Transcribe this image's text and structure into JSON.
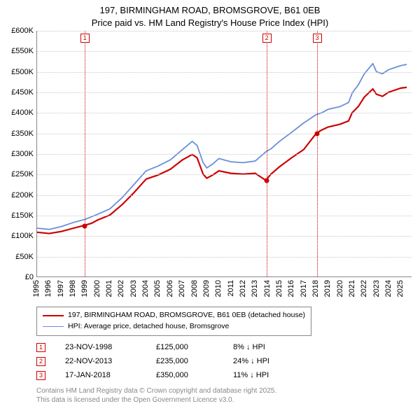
{
  "title_line1": "197, BIRMINGHAM ROAD, BROMSGROVE, B61 0EB",
  "title_line2": "Price paid vs. HM Land Registry's House Price Index (HPI)",
  "chart": {
    "type": "line",
    "background_color": "#ffffff",
    "grid_color": "#c8c8c8",
    "axis_color": "#888888",
    "y": {
      "min": 0,
      "max": 600000,
      "tick_step": 50000,
      "ticks": [
        "£0",
        "£50K",
        "£100K",
        "£150K",
        "£200K",
        "£250K",
        "£300K",
        "£350K",
        "£400K",
        "£450K",
        "£500K",
        "£550K",
        "£600K"
      ]
    },
    "x": {
      "min": 1995,
      "max": 2025.9,
      "ticks": [
        "1995",
        "1996",
        "1997",
        "1998",
        "1999",
        "2000",
        "2001",
        "2002",
        "2003",
        "2004",
        "2005",
        "2006",
        "2007",
        "2008",
        "2009",
        "2010",
        "2011",
        "2012",
        "2013",
        "2014",
        "2015",
        "2016",
        "2017",
        "2018",
        "2019",
        "2020",
        "2021",
        "2022",
        "2023",
        "2024",
        "2025"
      ]
    },
    "series": [
      {
        "key": "property",
        "label": "197, BIRMINGHAM ROAD, BROMSGROVE, B61 0EB (detached house)",
        "color": "#cc0000",
        "line_width": 2.2,
        "points": [
          [
            1995,
            108000
          ],
          [
            1996,
            105000
          ],
          [
            1997,
            110000
          ],
          [
            1998,
            118000
          ],
          [
            1998.9,
            125000
          ],
          [
            1999.5,
            130000
          ],
          [
            2000,
            138000
          ],
          [
            2001,
            150000
          ],
          [
            2002,
            175000
          ],
          [
            2003,
            205000
          ],
          [
            2004,
            238000
          ],
          [
            2005,
            248000
          ],
          [
            2006,
            262000
          ],
          [
            2007,
            285000
          ],
          [
            2007.8,
            298000
          ],
          [
            2008.2,
            290000
          ],
          [
            2008.7,
            250000
          ],
          [
            2009,
            240000
          ],
          [
            2009.5,
            248000
          ],
          [
            2010,
            258000
          ],
          [
            2011,
            252000
          ],
          [
            2012,
            250000
          ],
          [
            2013,
            252000
          ],
          [
            2013.86,
            235000
          ],
          [
            2014.3,
            250000
          ],
          [
            2015,
            268000
          ],
          [
            2016,
            290000
          ],
          [
            2017,
            310000
          ],
          [
            2018.04,
            350000
          ],
          [
            2018.5,
            358000
          ],
          [
            2019,
            365000
          ],
          [
            2020,
            372000
          ],
          [
            2020.7,
            380000
          ],
          [
            2021,
            400000
          ],
          [
            2021.5,
            415000
          ],
          [
            2022,
            438000
          ],
          [
            2022.7,
            458000
          ],
          [
            2023,
            445000
          ],
          [
            2023.5,
            440000
          ],
          [
            2024,
            450000
          ],
          [
            2024.5,
            455000
          ],
          [
            2025,
            460000
          ],
          [
            2025.5,
            462000
          ]
        ]
      },
      {
        "key": "hpi",
        "label": "HPI: Average price, detached house, Bromsgrove",
        "color": "#6a8fd8",
        "line_width": 1.8,
        "points": [
          [
            1995,
            118000
          ],
          [
            1996,
            115000
          ],
          [
            1997,
            122000
          ],
          [
            1998,
            132000
          ],
          [
            1999,
            140000
          ],
          [
            2000,
            152000
          ],
          [
            2001,
            165000
          ],
          [
            2002,
            192000
          ],
          [
            2003,
            225000
          ],
          [
            2004,
            258000
          ],
          [
            2005,
            270000
          ],
          [
            2006,
            285000
          ],
          [
            2007,
            310000
          ],
          [
            2007.8,
            330000
          ],
          [
            2008.2,
            320000
          ],
          [
            2008.7,
            278000
          ],
          [
            2009,
            265000
          ],
          [
            2009.5,
            275000
          ],
          [
            2010,
            288000
          ],
          [
            2011,
            280000
          ],
          [
            2012,
            278000
          ],
          [
            2013,
            282000
          ],
          [
            2013.9,
            305000
          ],
          [
            2014.3,
            312000
          ],
          [
            2015,
            330000
          ],
          [
            2016,
            352000
          ],
          [
            2017,
            375000
          ],
          [
            2018,
            395000
          ],
          [
            2018.5,
            400000
          ],
          [
            2019,
            408000
          ],
          [
            2020,
            415000
          ],
          [
            2020.7,
            425000
          ],
          [
            2021,
            448000
          ],
          [
            2021.5,
            468000
          ],
          [
            2022,
            495000
          ],
          [
            2022.7,
            520000
          ],
          [
            2023,
            500000
          ],
          [
            2023.5,
            495000
          ],
          [
            2024,
            505000
          ],
          [
            2024.5,
            510000
          ],
          [
            2025,
            515000
          ],
          [
            2025.5,
            518000
          ]
        ]
      }
    ],
    "markers": [
      {
        "n": "1",
        "year": 1998.9,
        "color": "#cc0000"
      },
      {
        "n": "2",
        "year": 2013.89,
        "color": "#cc0000"
      },
      {
        "n": "3",
        "year": 2018.04,
        "color": "#cc0000"
      }
    ],
    "sale_dots": [
      {
        "year": 1998.9,
        "value": 125000,
        "color": "#cc0000"
      },
      {
        "year": 2013.89,
        "value": 235000,
        "color": "#cc0000"
      },
      {
        "year": 2018.04,
        "value": 350000,
        "color": "#cc0000"
      }
    ]
  },
  "legend": {
    "items": [
      {
        "color": "#cc0000",
        "label_key": "chart.series.0.label"
      },
      {
        "color": "#6a8fd8",
        "label_key": "chart.series.1.label"
      }
    ]
  },
  "sales": [
    {
      "n": "1",
      "date": "23-NOV-1998",
      "price": "£125,000",
      "pct": "8% ↓ HPI",
      "color": "#cc0000"
    },
    {
      "n": "2",
      "date": "22-NOV-2013",
      "price": "£235,000",
      "pct": "24% ↓ HPI",
      "color": "#cc0000"
    },
    {
      "n": "3",
      "date": "17-JAN-2018",
      "price": "£350,000",
      "pct": "11% ↓ HPI",
      "color": "#cc0000"
    }
  ],
  "footnote_line1": "Contains HM Land Registry data © Crown copyright and database right 2025.",
  "footnote_line2": "This data is licensed under the Open Government Licence v3.0."
}
